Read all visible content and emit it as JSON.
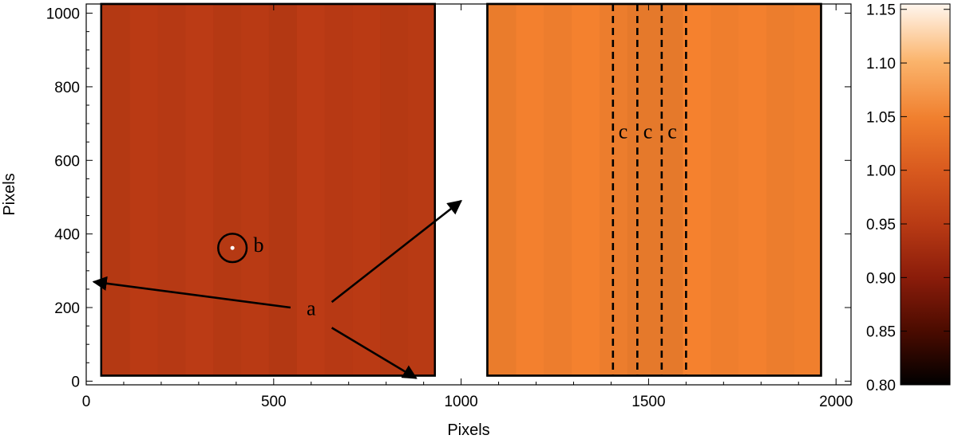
{
  "chart_data": {
    "type": "heatmap",
    "xlabel": "Pixels",
    "ylabel": "Pixels",
    "xlim": [
      0,
      2040
    ],
    "ylim": [
      -10,
      1025
    ],
    "x_ticks": [
      0,
      500,
      1000,
      1500,
      2000
    ],
    "y_ticks": [
      0,
      200,
      400,
      600,
      800,
      1000
    ],
    "panels": [
      {
        "name": "left",
        "x_range": [
          40,
          930
        ],
        "y_range": [
          15,
          1025
        ],
        "base_color": "#b83a14"
      },
      {
        "name": "right",
        "x_range": [
          1070,
          1960
        ],
        "y_range": [
          15,
          1025
        ],
        "base_color": "#f07f2e"
      }
    ],
    "dashed_lines_x": [
      1405,
      1470,
      1535,
      1600
    ],
    "dashed_y_range": [
      15,
      1025
    ],
    "circle": {
      "x": 390,
      "y": 362,
      "r": 38
    },
    "annotations": [
      {
        "text": "a",
        "x": 600,
        "y": 180
      },
      {
        "text": "b",
        "x": 460,
        "y": 352
      },
      {
        "text": "c",
        "x": 1432,
        "y": 660
      },
      {
        "text": "c",
        "x": 1498,
        "y": 660
      },
      {
        "text": "c",
        "x": 1563,
        "y": 660
      }
    ],
    "arrows": [
      {
        "from": [
          545,
          200
        ],
        "to": [
          20,
          270
        ]
      },
      {
        "from": [
          655,
          215
        ],
        "to": [
          1000,
          490
        ]
      },
      {
        "from": [
          655,
          145
        ],
        "to": [
          880,
          8
        ]
      }
    ],
    "colorbar": {
      "range": [
        0.8,
        1.155
      ],
      "ticks": [
        "0.80",
        "0.85",
        "0.90",
        "0.95",
        "1.00",
        "1.05",
        "1.10",
        "1.15"
      ],
      "stops": [
        "#000000",
        "#4a0b00",
        "#8a1c0a",
        "#b83a14",
        "#d8591e",
        "#f07f2e",
        "#fbb46c",
        "#fff6ee"
      ]
    }
  }
}
